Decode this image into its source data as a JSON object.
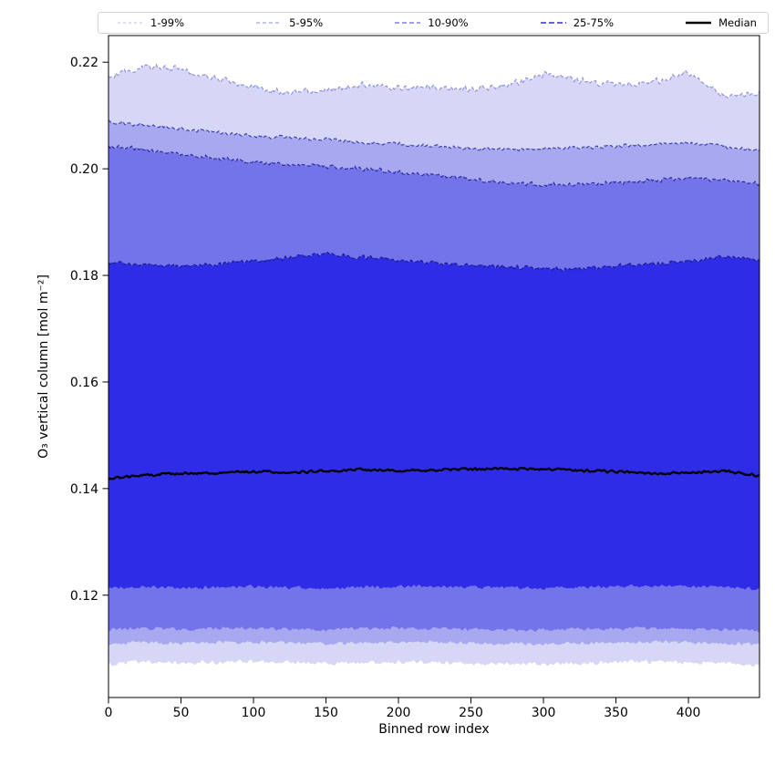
{
  "chart_data": {
    "type": "area",
    "title": "",
    "xlabel": "Binned row index",
    "ylabel": "O₃ vertical column [mol m⁻²]",
    "xlim": [
      0,
      449
    ],
    "ylim": [
      0.1008,
      0.225
    ],
    "grid": false,
    "legend_position": "top-outside",
    "xtick_values": [
      0,
      50,
      100,
      150,
      200,
      250,
      300,
      350,
      400
    ],
    "xtick_labels": [
      "0",
      "50",
      "100",
      "150",
      "200",
      "250",
      "300",
      "350",
      "400"
    ],
    "ytick_values": [
      0.12,
      0.14,
      0.16,
      0.18,
      0.2,
      0.22
    ],
    "ytick_labels": [
      "0.12",
      "0.14",
      "0.16",
      "0.18",
      "0.20",
      "0.22"
    ],
    "anchor_x": [
      0,
      25,
      50,
      75,
      100,
      125,
      150,
      175,
      200,
      225,
      250,
      275,
      300,
      325,
      350,
      375,
      400,
      425,
      449
    ],
    "percentiles": {
      "p99": [
        0.2174,
        0.2192,
        0.2186,
        0.2168,
        0.2152,
        0.2142,
        0.2148,
        0.2158,
        0.215,
        0.2154,
        0.2148,
        0.2156,
        0.2176,
        0.2166,
        0.2158,
        0.2162,
        0.218,
        0.2136,
        0.2142
      ],
      "p95": [
        0.2088,
        0.2082,
        0.2075,
        0.2068,
        0.2062,
        0.2058,
        0.2055,
        0.205,
        0.2046,
        0.2042,
        0.2038,
        0.2036,
        0.2038,
        0.204,
        0.2042,
        0.2045,
        0.205,
        0.2042,
        0.2034
      ],
      "p90": [
        0.2042,
        0.2036,
        0.2028,
        0.202,
        0.2013,
        0.2008,
        0.2005,
        0.2,
        0.1994,
        0.1988,
        0.198,
        0.1974,
        0.1969,
        0.1971,
        0.1974,
        0.1978,
        0.1983,
        0.1978,
        0.1972
      ],
      "p75": [
        0.1824,
        0.182,
        0.1818,
        0.1822,
        0.1827,
        0.1833,
        0.1841,
        0.1834,
        0.1828,
        0.1823,
        0.1819,
        0.1816,
        0.1813,
        0.1812,
        0.1818,
        0.1822,
        0.1827,
        0.1836,
        0.1829
      ],
      "median": [
        0.1418,
        0.1425,
        0.1428,
        0.143,
        0.1432,
        0.143,
        0.1433,
        0.1436,
        0.1433,
        0.1435,
        0.1436,
        0.1437,
        0.1436,
        0.1434,
        0.1432,
        0.1428,
        0.143,
        0.1433,
        0.1424
      ],
      "p25": [
        0.1213,
        0.1216,
        0.1214,
        0.1215,
        0.1216,
        0.1214,
        0.1213,
        0.1215,
        0.1216,
        0.1217,
        0.1215,
        0.1214,
        0.1213,
        0.1215,
        0.1216,
        0.1217,
        0.1216,
        0.1215,
        0.1212
      ],
      "p10": [
        0.1135,
        0.1138,
        0.1136,
        0.1137,
        0.1138,
        0.1136,
        0.1135,
        0.1137,
        0.1138,
        0.1138,
        0.1136,
        0.1135,
        0.1135,
        0.1136,
        0.1137,
        0.1138,
        0.1137,
        0.1136,
        0.1133
      ],
      "p5": [
        0.1109,
        0.1112,
        0.111,
        0.1111,
        0.1112,
        0.111,
        0.1109,
        0.1111,
        0.1112,
        0.1112,
        0.111,
        0.1109,
        0.1109,
        0.111,
        0.1111,
        0.1112,
        0.1111,
        0.111,
        0.1107
      ],
      "p1": [
        0.1071,
        0.1075,
        0.1073,
        0.1074,
        0.1075,
        0.1073,
        0.1071,
        0.1073,
        0.1075,
        0.1074,
        0.1072,
        0.1071,
        0.1071,
        0.1072,
        0.1074,
        0.1075,
        0.1074,
        0.1073,
        0.1069
      ]
    },
    "bands": [
      {
        "label": "1-99%",
        "lower": "p1",
        "upper": "p99",
        "fill": "#d6d6f7",
        "edge": "#8f8fdc",
        "legend_color": "#c9c9f2",
        "legend_dash": "3 3",
        "legend_lw": 1.2
      },
      {
        "label": "5-95%",
        "lower": "p5",
        "upper": "p95",
        "fill": "#a8a8f0",
        "edge": "#3d3dae",
        "legend_color": "#a4a4ec",
        "legend_dash": "4 3",
        "legend_lw": 1.3
      },
      {
        "label": "10-90%",
        "lower": "p10",
        "upper": "p90",
        "fill": "#7474ea",
        "edge": "#2a2a9c",
        "legend_color": "#7e7ee9",
        "legend_dash": "5 3",
        "legend_lw": 1.6
      },
      {
        "label": "25-75%",
        "lower": "p25",
        "upper": "p75",
        "fill": "#2e2ce6",
        "edge": "#1a1a8a",
        "legend_color": "#6161e3",
        "legend_dash": "6 3",
        "legend_lw": 2.1
      }
    ],
    "median_line": {
      "label": "Median",
      "color": "#000000",
      "lw": 2.3
    },
    "noise_amplitude": {
      "p99": 0.00075,
      "p95": 0.00042,
      "p90": 0.0005,
      "p75": 0.00045,
      "median": 0.00028,
      "p25": 0.0004,
      "p10": 0.00042,
      "p5": 0.00042,
      "p1": 0.0005
    },
    "edge_dash": "4 2.5",
    "edge_lw": 1.15,
    "axis_color": "#000000"
  },
  "legend": {
    "entries": [
      {
        "label": "1-99%"
      },
      {
        "label": "5-95%"
      },
      {
        "label": "10-90%"
      },
      {
        "label": "25-75%"
      },
      {
        "label": "Median"
      }
    ]
  }
}
